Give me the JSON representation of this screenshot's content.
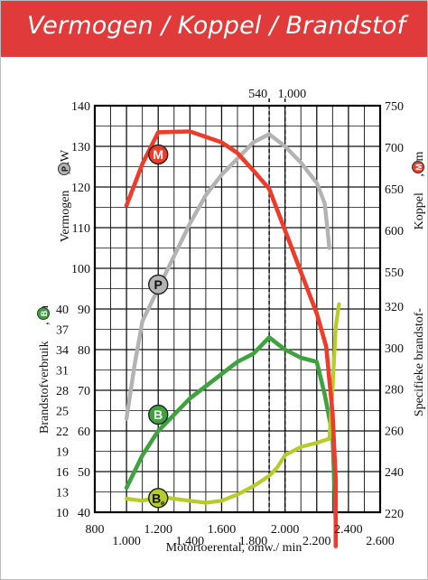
{
  "header": {
    "title": "Vermogen / Koppel / Brandstof"
  },
  "colors": {
    "header_bg": "#e03a3a",
    "M": "#ee3b2a",
    "P": "#b3b3b3",
    "B": "#3ea33e",
    "Be": "#b6cc27"
  },
  "chart_data": {
    "type": "line",
    "xlabel": "Motortoerental, omw./ min",
    "x_range": [
      800,
      2600
    ],
    "x_ticks_top_row": [
      "800",
      "1.200",
      "1.600",
      "2.000",
      "2.400"
    ],
    "x_ticks_bottom_row": [
      "1.000",
      "1.400",
      "1.800",
      "2.200",
      "2.600"
    ],
    "annotations": {
      "dashed_lines": [
        1900,
        2000
      ],
      "dashed_labels": [
        "540",
        "1.000"
      ]
    },
    "axes": {
      "power": {
        "label": "Vermogen",
        "badge": "P",
        "unit": ", kW",
        "range": [
          40,
          140
        ],
        "ticks": [
          "40",
          "50",
          "60",
          "70",
          "80",
          "90",
          "100",
          "110",
          "120",
          "130",
          "140"
        ]
      },
      "fuel_consumption": {
        "label": "Brandstofverbruik",
        "badge": "B",
        "unit": ", l/h",
        "ticks": [
          "10",
          "13",
          "16",
          "19",
          "22",
          "25",
          "28",
          "31",
          "34",
          "37",
          "40"
        ]
      },
      "torque": {
        "label": "Koppel",
        "badge": "M",
        "unit": ", Nm",
        "range": [
          550,
          750
        ],
        "ticks": [
          "550",
          "600",
          "650",
          "700",
          "750"
        ]
      },
      "specific_consumption": {
        "label": "Specifieke brandstof-",
        "range": [
          220,
          320
        ],
        "ticks": [
          "220",
          "240",
          "260",
          "280",
          "300",
          "320"
        ]
      }
    },
    "series": [
      {
        "name": "M",
        "axis": "torque",
        "points": [
          [
            1000,
            630
          ],
          [
            1100,
            680
          ],
          [
            1200,
            718
          ],
          [
            1400,
            719
          ],
          [
            1600,
            706
          ],
          [
            1700,
            693
          ],
          [
            1800,
            672
          ],
          [
            1900,
            650
          ],
          [
            2000,
            600
          ],
          [
            2100,
            550
          ],
          [
            2200,
            500
          ],
          [
            2260,
            460
          ],
          [
            2300,
            380
          ],
          [
            2320,
            300
          ],
          [
            2320,
            220
          ]
        ]
      },
      {
        "name": "P",
        "axis": "power",
        "points": [
          [
            1000,
            63
          ],
          [
            1050,
            76
          ],
          [
            1100,
            87
          ],
          [
            1200,
            95
          ],
          [
            1300,
            103
          ],
          [
            1400,
            111
          ],
          [
            1500,
            118
          ],
          [
            1600,
            123
          ],
          [
            1700,
            127
          ],
          [
            1800,
            131
          ],
          [
            1900,
            133
          ],
          [
            2000,
            130
          ],
          [
            2100,
            126
          ],
          [
            2200,
            121
          ],
          [
            2250,
            116
          ],
          [
            2280,
            105
          ]
        ]
      },
      {
        "name": "B",
        "axis": "power",
        "points": [
          [
            1000,
            46
          ],
          [
            1100,
            54
          ],
          [
            1200,
            60
          ],
          [
            1300,
            64
          ],
          [
            1400,
            68
          ],
          [
            1500,
            71
          ],
          [
            1600,
            74
          ],
          [
            1700,
            77
          ],
          [
            1800,
            79
          ],
          [
            1900,
            83
          ],
          [
            2000,
            80
          ],
          [
            2100,
            78
          ],
          [
            2200,
            77
          ],
          [
            2250,
            69
          ],
          [
            2300,
            59
          ],
          [
            2310,
            48
          ],
          [
            2320,
            38
          ]
        ]
      },
      {
        "name": "Be",
        "axis": "specific_consumption",
        "points": [
          [
            1000,
            227
          ],
          [
            1100,
            226
          ],
          [
            1200,
            228
          ],
          [
            1300,
            227
          ],
          [
            1400,
            226
          ],
          [
            1500,
            225
          ],
          [
            1600,
            226
          ],
          [
            1700,
            229
          ],
          [
            1800,
            233
          ],
          [
            1900,
            238
          ],
          [
            1950,
            242
          ],
          [
            2000,
            248
          ],
          [
            2100,
            252
          ],
          [
            2200,
            254
          ],
          [
            2280,
            256
          ],
          [
            2300,
            280
          ],
          [
            2320,
            310
          ],
          [
            2340,
            321
          ]
        ]
      }
    ],
    "badges": [
      {
        "text": "M",
        "x": 1200,
        "y": 128
      },
      {
        "text": "P",
        "x": 1200,
        "y": 96
      },
      {
        "text": "B",
        "x": 1200,
        "y": 64
      },
      {
        "text": "B",
        "sub": "e",
        "x": 1200,
        "y": 43.5
      }
    ]
  }
}
